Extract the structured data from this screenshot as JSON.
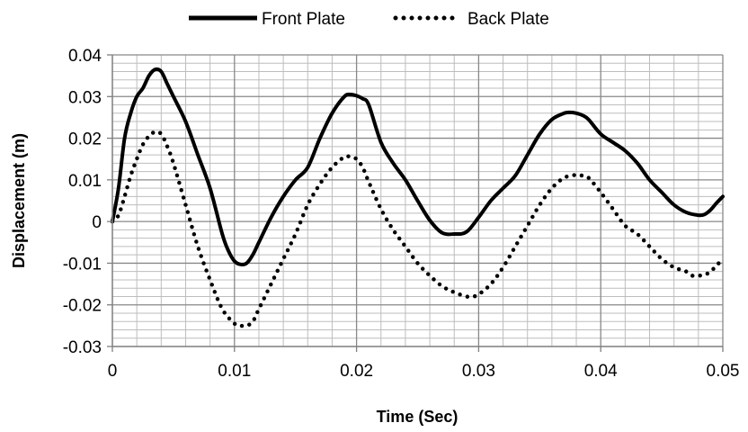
{
  "chart_data": {
    "type": "line",
    "title": "",
    "xlabel": "Time (Sec)",
    "ylabel": "Displacement (m)",
    "xlim": [
      0,
      0.05
    ],
    "ylim": [
      -0.03,
      0.04
    ],
    "grid": true,
    "legend_position": "top",
    "x_tick_labels": [
      "0",
      "0.01",
      "0.02",
      "0.03",
      "0.04",
      "0.05"
    ],
    "x_ticks": [
      0,
      0.01,
      0.02,
      0.03,
      0.04,
      0.05
    ],
    "y_tick_labels": [
      "-0.03",
      "-0.02",
      "-0.01",
      "0",
      "0.01",
      "0.02",
      "0.03",
      "0.04"
    ],
    "y_ticks": [
      -0.03,
      -0.02,
      -0.01,
      0,
      0.01,
      0.02,
      0.03,
      0.04
    ],
    "series": [
      {
        "name": "Front Plate",
        "style": "solid",
        "color": "#000000",
        "x": [
          0,
          0.0005,
          0.001,
          0.0015,
          0.002,
          0.0025,
          0.003,
          0.0035,
          0.004,
          0.0045,
          0.005,
          0.006,
          0.007,
          0.008,
          0.009,
          0.0095,
          0.01,
          0.0105,
          0.011,
          0.0115,
          0.012,
          0.013,
          0.014,
          0.015,
          0.016,
          0.017,
          0.018,
          0.019,
          0.0195,
          0.02,
          0.0205,
          0.021,
          0.022,
          0.023,
          0.024,
          0.025,
          0.026,
          0.027,
          0.028,
          0.029,
          0.03,
          0.031,
          0.032,
          0.033,
          0.034,
          0.035,
          0.036,
          0.037,
          0.0375,
          0.038,
          0.0385,
          0.039,
          0.04,
          0.041,
          0.042,
          0.043,
          0.044,
          0.045,
          0.046,
          0.047,
          0.048,
          0.0485,
          0.049,
          0.0495,
          0.05
        ],
        "y": [
          0,
          0.008,
          0.02,
          0.026,
          0.03,
          0.032,
          0.035,
          0.0365,
          0.036,
          0.033,
          0.03,
          0.024,
          0.016,
          0.008,
          -0.003,
          -0.007,
          -0.0095,
          -0.0103,
          -0.01,
          -0.008,
          -0.005,
          0.001,
          0.006,
          0.01,
          0.013,
          0.02,
          0.026,
          0.03,
          0.0305,
          0.0302,
          0.0295,
          0.028,
          0.019,
          0.014,
          0.01,
          0.005,
          0.0003,
          -0.0027,
          -0.003,
          -0.0025,
          0.001,
          0.005,
          0.008,
          0.011,
          0.016,
          0.021,
          0.0245,
          0.026,
          0.0262,
          0.026,
          0.0255,
          0.0245,
          0.021,
          0.019,
          0.017,
          0.014,
          0.01,
          0.007,
          0.004,
          0.0022,
          0.0015,
          0.0017,
          0.0028,
          0.0045,
          0.006
        ]
      },
      {
        "name": "Back Plate",
        "style": "dotted",
        "color": "#000000",
        "x": [
          0,
          0.0005,
          0.001,
          0.0015,
          0.002,
          0.0025,
          0.003,
          0.0035,
          0.004,
          0.0045,
          0.005,
          0.006,
          0.007,
          0.008,
          0.009,
          0.01,
          0.0105,
          0.011,
          0.0115,
          0.012,
          0.013,
          0.014,
          0.015,
          0.016,
          0.017,
          0.018,
          0.019,
          0.0195,
          0.02,
          0.0205,
          0.021,
          0.022,
          0.023,
          0.024,
          0.025,
          0.026,
          0.027,
          0.028,
          0.029,
          0.0295,
          0.03,
          0.031,
          0.032,
          0.033,
          0.034,
          0.035,
          0.036,
          0.037,
          0.038,
          0.0385,
          0.039,
          0.04,
          0.041,
          0.042,
          0.043,
          0.044,
          0.045,
          0.046,
          0.047,
          0.0475,
          0.048,
          0.0485,
          0.049,
          0.0495,
          0.05
        ],
        "y": [
          0,
          0.0015,
          0.006,
          0.011,
          0.015,
          0.0185,
          0.0205,
          0.0215,
          0.021,
          0.018,
          0.014,
          0.004,
          -0.006,
          -0.014,
          -0.021,
          -0.0245,
          -0.025,
          -0.025,
          -0.024,
          -0.021,
          -0.015,
          -0.009,
          -0.003,
          0.004,
          0.009,
          0.013,
          0.0155,
          0.0155,
          0.015,
          0.013,
          0.0095,
          0.003,
          -0.002,
          -0.006,
          -0.01,
          -0.013,
          -0.0155,
          -0.017,
          -0.018,
          -0.018,
          -0.0175,
          -0.015,
          -0.011,
          -0.006,
          -0.001,
          0.004,
          0.008,
          0.0105,
          0.0112,
          0.011,
          0.0105,
          0.007,
          0.003,
          -0.001,
          -0.003,
          -0.006,
          -0.009,
          -0.011,
          -0.012,
          -0.013,
          -0.013,
          -0.0128,
          -0.012,
          -0.0105,
          -0.009
        ]
      }
    ]
  }
}
